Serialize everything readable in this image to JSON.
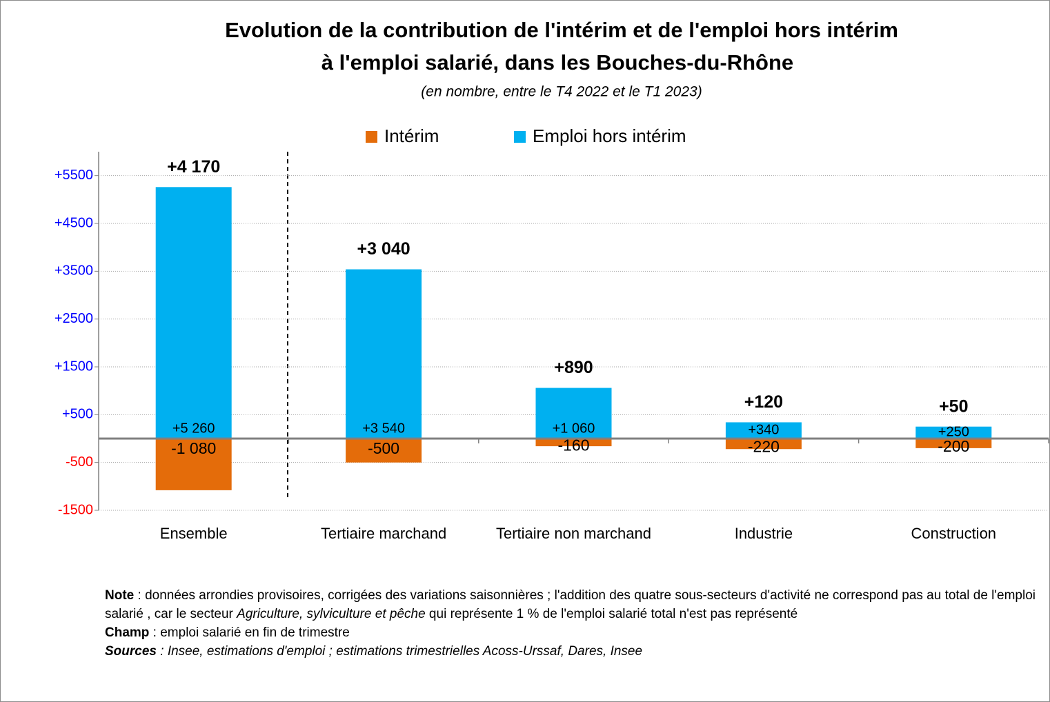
{
  "chart_data": {
    "type": "bar",
    "title": [
      "Evolution de la contribution de l'intérim et de l'emploi hors intérim",
      "à l'emploi salarié, dans les Bouches-du-Rhône"
    ],
    "subtitle": "(en nombre, entre le T4 2022 et le T1 2023)",
    "categories": [
      "Ensemble",
      "Tertiaire marchand",
      "Tertiaire non marchand",
      "Industrie",
      "Construction"
    ],
    "series": [
      {
        "name": "Intérim",
        "color": "#e46c0a",
        "values": [
          -1080,
          -500,
          -160,
          -220,
          -200
        ],
        "value_labels": [
          "-1 080",
          "-500",
          "-160",
          "-220",
          "-200"
        ]
      },
      {
        "name": "Emploi hors intérim",
        "color": "#00b0f0",
        "values": [
          5260,
          3540,
          1060,
          340,
          250
        ],
        "value_labels": [
          "+5 260",
          "+3 540",
          "+1 060",
          "+340",
          "+250"
        ]
      }
    ],
    "totals": [
      4170,
      3040,
      890,
      120,
      50
    ],
    "total_labels": [
      "+4 170",
      "+3 040",
      "+890",
      "+120",
      "+50"
    ],
    "ylim": [
      -1500,
      6000
    ],
    "yticks": [
      {
        "value": 5500,
        "label": "+5500"
      },
      {
        "value": 4500,
        "label": "+4500"
      },
      {
        "value": 3500,
        "label": "+3500"
      },
      {
        "value": 2500,
        "label": "+2500"
      },
      {
        "value": 1500,
        "label": "+1500"
      },
      {
        "value": 500,
        "label": "+500"
      },
      -500,
      -1500
    ],
    "grid": true
  },
  "footer": {
    "note": {
      "label": "Note",
      "parts": [
        " : données arrondies provisoires, corrigées des variations saisonnières ; l'addition des quatre sous-secteurs d'activité ne correspond pas au total de l'emploi salarié , car le secteur ",
        "Agriculture, sylviculture et pêche",
        " qui représente 1 % de l'emploi salarié total n'est pas représenté"
      ]
    },
    "champ": {
      "label": "Champ",
      "text": " : emploi salarié en fin de trimestre"
    },
    "sources": {
      "label": "Sources",
      "text": " : Insee, estimations d'emploi ; estimations trimestrielles Acoss-Urssaf, Dares, Insee"
    }
  }
}
